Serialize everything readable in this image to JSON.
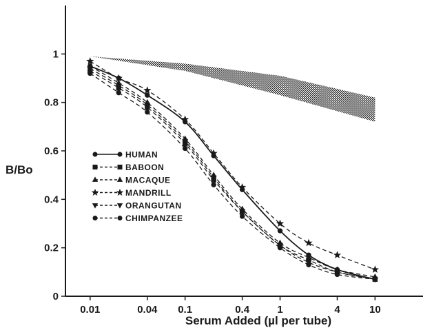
{
  "chart_data": {
    "type": "line",
    "title": "",
    "xlabel": "Serum Added (µl per tube)",
    "ylabel": "B/Bo",
    "x_scale": "log",
    "xlim": [
      0.0055,
      32
    ],
    "ylim": [
      0,
      1.2
    ],
    "x_ticks": [
      {
        "value": 0.01,
        "label": "0.01"
      },
      {
        "value": 0.04,
        "label": "0.04"
      },
      {
        "value": 0.1,
        "label": "0.1"
      },
      {
        "value": 0.4,
        "label": "0.4"
      },
      {
        "value": 1,
        "label": "1"
      },
      {
        "value": 4,
        "label": "4"
      },
      {
        "value": 10,
        "label": "10"
      }
    ],
    "y_ticks": [
      {
        "value": 0,
        "label": "0"
      },
      {
        "value": 0.2,
        "label": "0.2"
      },
      {
        "value": 0.4,
        "label": "0.4"
      },
      {
        "value": 0.6,
        "label": "0.6"
      },
      {
        "value": 0.8,
        "label": "0.8"
      },
      {
        "value": 1,
        "label": "1"
      }
    ],
    "grid": false,
    "legend_position": "lower-left",
    "x": [
      0.01,
      0.02,
      0.04,
      0.1,
      0.2,
      0.4,
      1,
      2,
      4,
      10
    ],
    "series": [
      {
        "name": "HUMAN",
        "marker": "circle",
        "dash": "solid",
        "color": "#1a1a1a",
        "values": [
          0.95,
          0.9,
          0.83,
          0.72,
          0.58,
          0.44,
          0.27,
          0.17,
          0.11,
          0.07
        ]
      },
      {
        "name": "BABOON",
        "marker": "square",
        "dash": "dashed",
        "color": "#1a1a1a",
        "values": [
          0.93,
          0.86,
          0.78,
          0.63,
          0.48,
          0.35,
          0.21,
          0.15,
          0.1,
          0.07
        ]
      },
      {
        "name": "MACAQUE",
        "marker": "triangle-up",
        "dash": "dashed",
        "color": "#1a1a1a",
        "values": [
          0.95,
          0.88,
          0.8,
          0.65,
          0.5,
          0.36,
          0.22,
          0.16,
          0.11,
          0.08
        ]
      },
      {
        "name": "MANDRILL",
        "marker": "star",
        "dash": "dashed",
        "color": "#1a1a1a",
        "values": [
          0.97,
          0.9,
          0.85,
          0.73,
          0.59,
          0.45,
          0.3,
          0.22,
          0.17,
          0.11
        ]
      },
      {
        "name": "ORANGUTAN",
        "marker": "triangle-down",
        "dash": "dashed",
        "color": "#1a1a1a",
        "values": [
          0.94,
          0.87,
          0.79,
          0.64,
          0.49,
          0.35,
          0.21,
          0.14,
          0.1,
          0.07
        ]
      },
      {
        "name": "CHIMPANZEE",
        "marker": "circle",
        "dash": "dashed",
        "color": "#1a1a1a",
        "values": [
          0.92,
          0.84,
          0.76,
          0.61,
          0.46,
          0.33,
          0.2,
          0.13,
          0.09,
          0.07
        ]
      }
    ],
    "shaded_band": {
      "x": [
        0.01,
        0.1,
        1,
        10
      ],
      "upper": [
        0.99,
        0.96,
        0.91,
        0.82
      ],
      "lower": [
        0.99,
        0.93,
        0.83,
        0.72
      ]
    }
  }
}
